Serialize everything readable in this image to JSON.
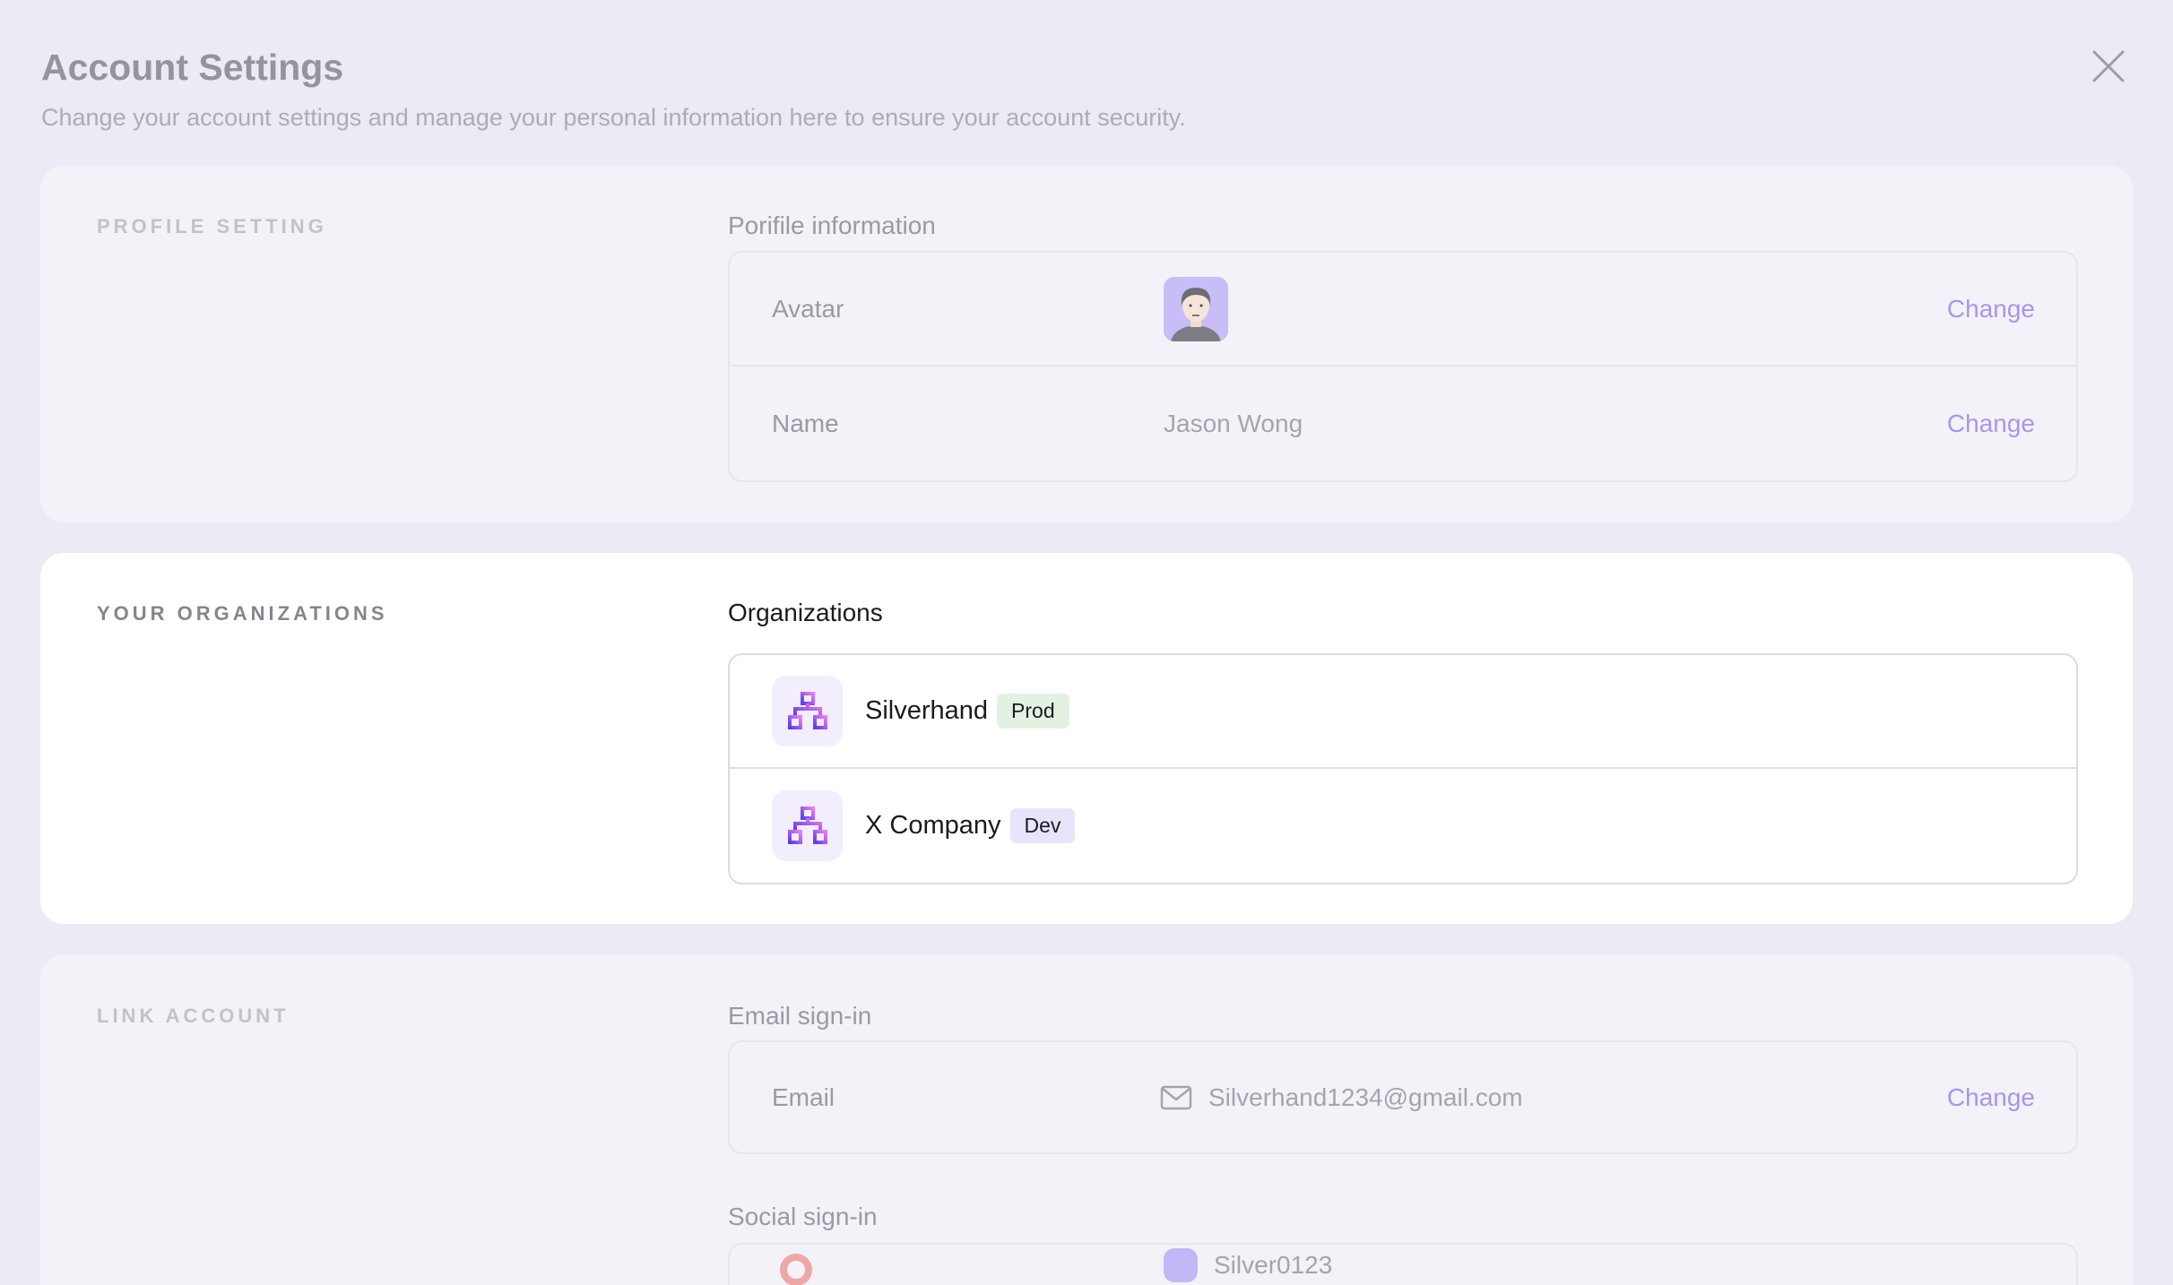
{
  "header": {
    "title": "Account Settings",
    "subtitle": "Change your account settings and manage your personal information here to ensure your account security.",
    "close_icon": "close-icon"
  },
  "profile": {
    "section": "PROFILE SETTING",
    "subtitle": "Porifile information",
    "rows": [
      {
        "label": "Avatar",
        "action": "Change"
      },
      {
        "label": "Name",
        "value": "Jason Wong",
        "action": "Change"
      }
    ]
  },
  "organizations": {
    "section": "YOUR ORGANIZATIONS",
    "subtitle": "Organizations",
    "items": [
      {
        "name": "Silverhand",
        "tag": "Prod",
        "tag_color": "#e3f1e3"
      },
      {
        "name": "X Company",
        "tag": "Dev",
        "tag_color": "#e8e4fc"
      }
    ]
  },
  "link": {
    "section": "LINK ACCOUNT",
    "email_title": "Email sign-in",
    "email": {
      "label": "Email",
      "value": "Silverhand1234@gmail.com",
      "action": "Change"
    },
    "social_title": "Social sign-in",
    "social_value": "Silver0123"
  },
  "colors": {
    "accent": "#a995ef",
    "background": "#eceaf4"
  }
}
